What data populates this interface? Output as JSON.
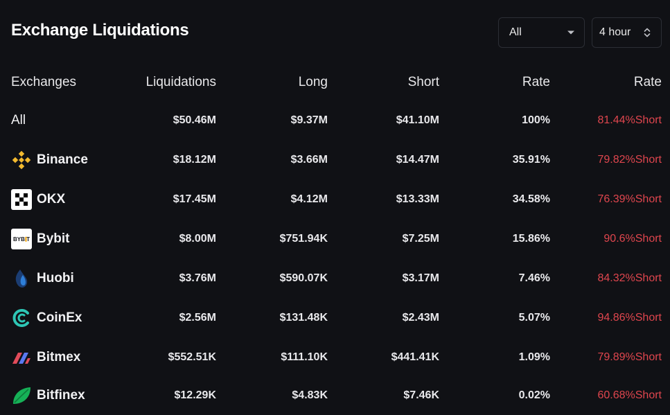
{
  "header": {
    "title": "Exchange Liquidations",
    "filter_value": "All",
    "period_value": "4 hour"
  },
  "columns": [
    "Exchanges",
    "Liquidations",
    "Long",
    "Short",
    "Rate",
    "Rate"
  ],
  "rows": [
    {
      "name": "All",
      "icon": "",
      "liquidations": "$50.46M",
      "long": "$9.37M",
      "short": "$41.10M",
      "rate": "100%",
      "short_rate": "81.44%Short"
    },
    {
      "name": "Binance",
      "icon": "binance-logo-icon",
      "liquidations": "$18.12M",
      "long": "$3.66M",
      "short": "$14.47M",
      "rate": "35.91%",
      "short_rate": "79.82%Short"
    },
    {
      "name": "OKX",
      "icon": "okx-logo-icon",
      "liquidations": "$17.45M",
      "long": "$4.12M",
      "short": "$13.33M",
      "rate": "34.58%",
      "short_rate": "76.39%Short"
    },
    {
      "name": "Bybit",
      "icon": "bybit-logo-icon",
      "liquidations": "$8.00M",
      "long": "$751.94K",
      "short": "$7.25M",
      "rate": "15.86%",
      "short_rate": "90.6%Short"
    },
    {
      "name": "Huobi",
      "icon": "huobi-logo-icon",
      "liquidations": "$3.76M",
      "long": "$590.07K",
      "short": "$3.17M",
      "rate": "7.46%",
      "short_rate": "84.32%Short"
    },
    {
      "name": "CoinEx",
      "icon": "coinex-logo-icon",
      "liquidations": "$2.56M",
      "long": "$131.48K",
      "short": "$2.43M",
      "rate": "5.07%",
      "short_rate": "94.86%Short"
    },
    {
      "name": "Bitmex",
      "icon": "bitmex-logo-icon",
      "liquidations": "$552.51K",
      "long": "$111.10K",
      "short": "$441.41K",
      "rate": "1.09%",
      "short_rate": "79.89%Short"
    },
    {
      "name": "Bitfinex",
      "icon": "bitfinex-logo-icon",
      "liquidations": "$12.29K",
      "long": "$4.83K",
      "short": "$7.46K",
      "rate": "0.02%",
      "short_rate": "60.68%Short"
    }
  ],
  "logo_text": {
    "bybit": "BYBIT"
  },
  "colors": {
    "background": "#101115",
    "short_rate": "#e0464e",
    "binance": "#f3ba2f",
    "coinex": "#2ec6b5",
    "bitfinex": "#16b157"
  }
}
